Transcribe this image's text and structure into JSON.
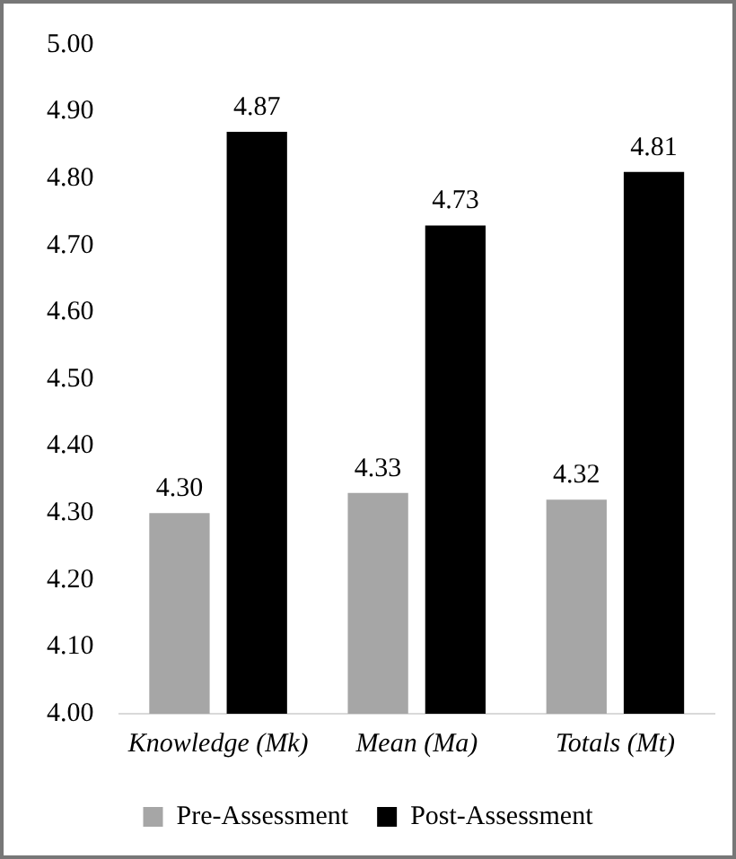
{
  "chart_data": {
    "type": "bar",
    "categories": [
      "Knowledge (Mk)",
      "Mean (Ma)",
      "Totals (Mt)"
    ],
    "series": [
      {
        "name": "Pre-Assessment",
        "color": "#a6a6a6",
        "values": [
          4.3,
          4.33,
          4.32
        ],
        "value_labels": [
          "4.30",
          "4.33",
          "4.32"
        ]
      },
      {
        "name": "Post-Assessment",
        "color": "#000000",
        "values": [
          4.87,
          4.73,
          4.81
        ],
        "value_labels": [
          "4.87",
          "4.73",
          "4.81"
        ]
      }
    ],
    "ylim": [
      4,
      5
    ],
    "yticks": [
      {
        "value": 4,
        "label": "4.00"
      },
      {
        "value": 4.1,
        "label": "4.10"
      },
      {
        "value": 4.2,
        "label": "4.20"
      },
      {
        "value": 4.3,
        "label": "4.30"
      },
      {
        "value": 4.4,
        "label": "4.40"
      },
      {
        "value": 4.5,
        "label": "4.50"
      },
      {
        "value": 4.6,
        "label": "4.60"
      },
      {
        "value": 4.7,
        "label": "4.70"
      },
      {
        "value": 4.8,
        "label": "4.80"
      },
      {
        "value": 4.9,
        "label": "4.90"
      },
      {
        "value": 5,
        "label": "5.00"
      }
    ],
    "grid": false,
    "legend": "bottom"
  }
}
